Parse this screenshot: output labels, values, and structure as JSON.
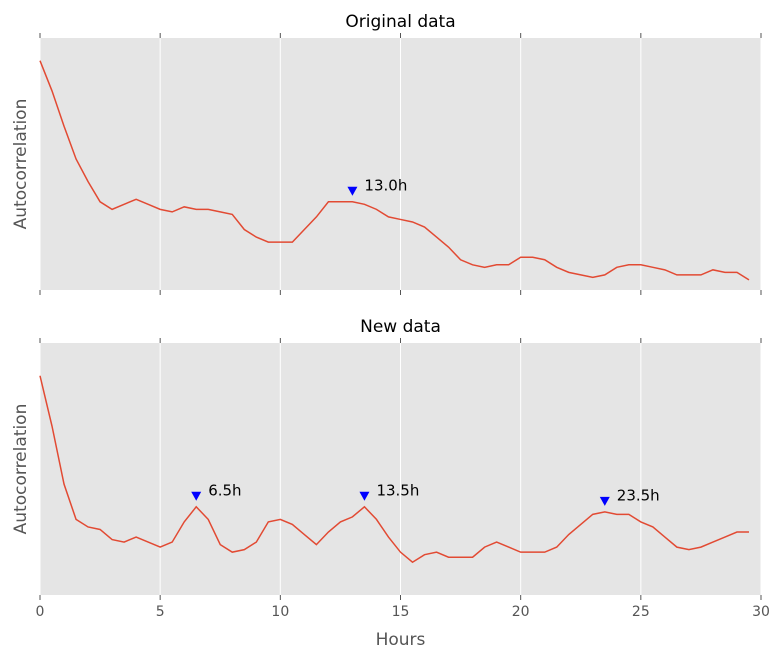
{
  "chart_data": [
    {
      "type": "line",
      "title": "Original data",
      "ylabel": "Autocorrelation",
      "xticklabels": false,
      "x": [
        0,
        0.5,
        1,
        1.5,
        2,
        2.5,
        3,
        3.5,
        4,
        4.5,
        5,
        5.5,
        6,
        6.5,
        7,
        7.5,
        8,
        8.5,
        9,
        9.5,
        10,
        10.5,
        11,
        11.5,
        12,
        12.5,
        13,
        13.5,
        14,
        14.5,
        15,
        15.5,
        16,
        16.5,
        17,
        17.5,
        18,
        18.5,
        19,
        19.5,
        20,
        20.5,
        21,
        21.5,
        22,
        22.5,
        23,
        23.5,
        24,
        24.5,
        25,
        25.5,
        26,
        26.5,
        27,
        27.5,
        28,
        28.5,
        29,
        29.5
      ],
      "values": [
        0.91,
        0.79,
        0.65,
        0.52,
        0.43,
        0.35,
        0.32,
        0.34,
        0.36,
        0.34,
        0.32,
        0.31,
        0.33,
        0.32,
        0.32,
        0.31,
        0.3,
        0.24,
        0.21,
        0.19,
        0.19,
        0.19,
        0.24,
        0.29,
        0.35,
        0.35,
        0.35,
        0.34,
        0.32,
        0.29,
        0.28,
        0.27,
        0.25,
        0.21,
        0.17,
        0.12,
        0.1,
        0.09,
        0.1,
        0.1,
        0.13,
        0.13,
        0.12,
        0.09,
        0.07,
        0.06,
        0.05,
        0.06,
        0.09,
        0.1,
        0.1,
        0.09,
        0.08,
        0.06,
        0.06,
        0.06,
        0.08,
        0.07,
        0.07,
        0.04
      ],
      "color": "#e24a33",
      "xlim": [
        0,
        30
      ],
      "xticks": [
        0,
        5,
        10,
        15,
        20,
        25,
        30
      ],
      "ylim": [
        0,
        1
      ],
      "grid": true,
      "peaks": [
        {
          "x": 13.0,
          "label": "13.0h"
        }
      ],
      "peak_color": "#0000ff"
    },
    {
      "type": "line",
      "title": "New data",
      "ylabel": "Autocorrelation",
      "xlabel": "Hours",
      "xticklabels": true,
      "x": [
        0,
        0.5,
        1,
        1.5,
        2,
        2.5,
        3,
        3.5,
        4,
        4.5,
        5,
        5.5,
        6,
        6.5,
        7,
        7.5,
        8,
        8.5,
        9,
        9.5,
        10,
        10.5,
        11,
        11.5,
        12,
        12.5,
        13,
        13.5,
        14,
        14.5,
        15,
        15.5,
        16,
        16.5,
        17,
        17.5,
        18,
        18.5,
        19,
        19.5,
        20,
        20.5,
        21,
        21.5,
        22,
        22.5,
        23,
        23.5,
        24,
        24.5,
        25,
        25.5,
        26,
        26.5,
        27,
        27.5,
        28,
        28.5,
        29,
        29.5
      ],
      "values": [
        0.87,
        0.67,
        0.44,
        0.3,
        0.27,
        0.26,
        0.22,
        0.21,
        0.23,
        0.21,
        0.19,
        0.21,
        0.29,
        0.35,
        0.3,
        0.2,
        0.17,
        0.18,
        0.21,
        0.29,
        0.3,
        0.28,
        0.24,
        0.2,
        0.25,
        0.29,
        0.31,
        0.35,
        0.3,
        0.23,
        0.17,
        0.13,
        0.16,
        0.17,
        0.15,
        0.15,
        0.15,
        0.19,
        0.21,
        0.19,
        0.17,
        0.17,
        0.17,
        0.19,
        0.24,
        0.28,
        0.32,
        0.33,
        0.32,
        0.32,
        0.29,
        0.27,
        0.23,
        0.19,
        0.18,
        0.19,
        0.21,
        0.23,
        0.25,
        0.25
      ],
      "color": "#e24a33",
      "xlim": [
        0,
        30
      ],
      "xticks": [
        0,
        5,
        10,
        15,
        20,
        25,
        30
      ],
      "ylim": [
        0,
        1
      ],
      "grid": true,
      "peaks": [
        {
          "x": 6.5,
          "label": "6.5h"
        },
        {
          "x": 13.5,
          "label": "13.5h"
        },
        {
          "x": 23.5,
          "label": "23.5h"
        }
      ],
      "peak_color": "#0000ff"
    }
  ]
}
